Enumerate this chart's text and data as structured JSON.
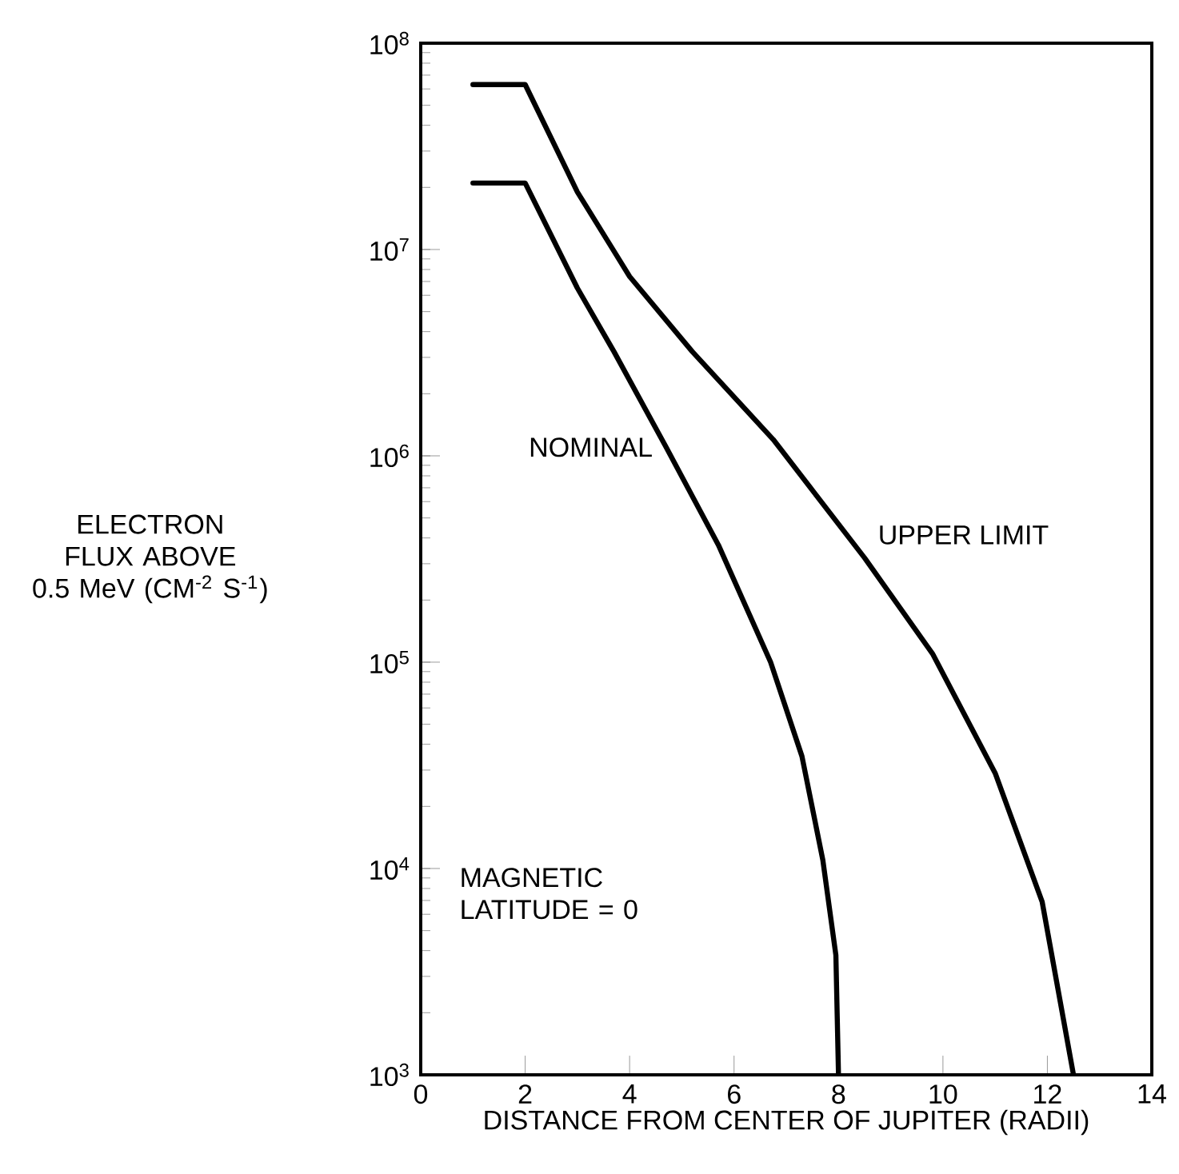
{
  "chart_data": {
    "type": "line",
    "xlabel": "DISTANCE FROM CENTER OF JUPITER (RADII)",
    "ylabel": "ELECTRON FLUX ABOVE 0.5 MeV (CM$^{-2}$ S$^{-1}$)",
    "log": "y",
    "xlim": [
      0,
      14
    ],
    "ylim": [
      1000,
      100000000
    ],
    "xticks": [
      0,
      2,
      4,
      6,
      8,
      10,
      12,
      14
    ],
    "yticks": [
      {
        "value": 1000,
        "label": "10$^{3}$"
      },
      {
        "value": 10000,
        "label": "10$^{4}$"
      },
      {
        "value": 100000,
        "label": "10$^{5}$"
      },
      {
        "value": 1000000,
        "label": "10$^{6}$"
      },
      {
        "value": 10000000,
        "label": "10$^{7}$"
      },
      {
        "value": 100000000,
        "label": "10$^{8}$"
      }
    ],
    "grid": false,
    "marker": "none",
    "line_style": "solid",
    "annotations": [
      "MAGNETIC LATITUDE = 0"
    ],
    "series": [
      {
        "name": "UPPER LIMIT",
        "color": "#000000",
        "x": [
          1,
          2,
          3,
          4,
          5.2,
          6.75,
          8.5,
          9.8,
          11,
          11.9,
          12.5
        ],
        "values": [
          63000000,
          63000000,
          19000000,
          7400000,
          3200000,
          1200000,
          320000,
          110000,
          29000,
          6900,
          1000
        ]
      },
      {
        "name": "NOMINAL",
        "color": "#000000",
        "x": [
          1,
          2,
          3,
          3.7,
          4.7,
          5.7,
          6.7,
          7.3,
          7.7,
          7.95,
          8
        ],
        "values": [
          21000000,
          21000000,
          6500000,
          3200000,
          1100000,
          370000,
          100000,
          35000,
          11000,
          3800,
          1000
        ]
      }
    ]
  }
}
